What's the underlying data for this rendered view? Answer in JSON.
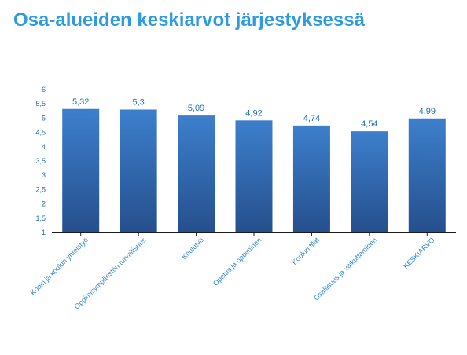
{
  "title": "Osa-alueiden keskiarvot järjestyksessä",
  "colors": {
    "title": "#2e9ae0",
    "bar_top": "#3d7fcc",
    "bar_bottom": "#254f8d",
    "text": "#1f6fb5"
  },
  "chart_data": {
    "type": "bar",
    "title": "Osa-alueiden keskiarvot järjestyksessä",
    "xlabel": "",
    "ylabel": "",
    "ylim": [
      1,
      6
    ],
    "yticks": [
      "1",
      "1,5",
      "2",
      "2,5",
      "3",
      "3,5",
      "4",
      "4,5",
      "5",
      "5,5",
      "6"
    ],
    "grid": false,
    "categories": [
      "Kodin ja koulun yhteistyö",
      "Oppimisympäristön turvallisuus",
      "Koulutyö",
      "Opetus ja oppiminen",
      "Koulun tilat",
      "Osallisuus ja vaikuttaminen",
      "KESKIARVO"
    ],
    "values": [
      5.32,
      5.3,
      5.09,
      4.92,
      4.74,
      4.54,
      4.99
    ],
    "value_labels": [
      "5,32",
      "5,3",
      "5,09",
      "4,92",
      "4,74",
      "4,54",
      "4,99"
    ]
  }
}
